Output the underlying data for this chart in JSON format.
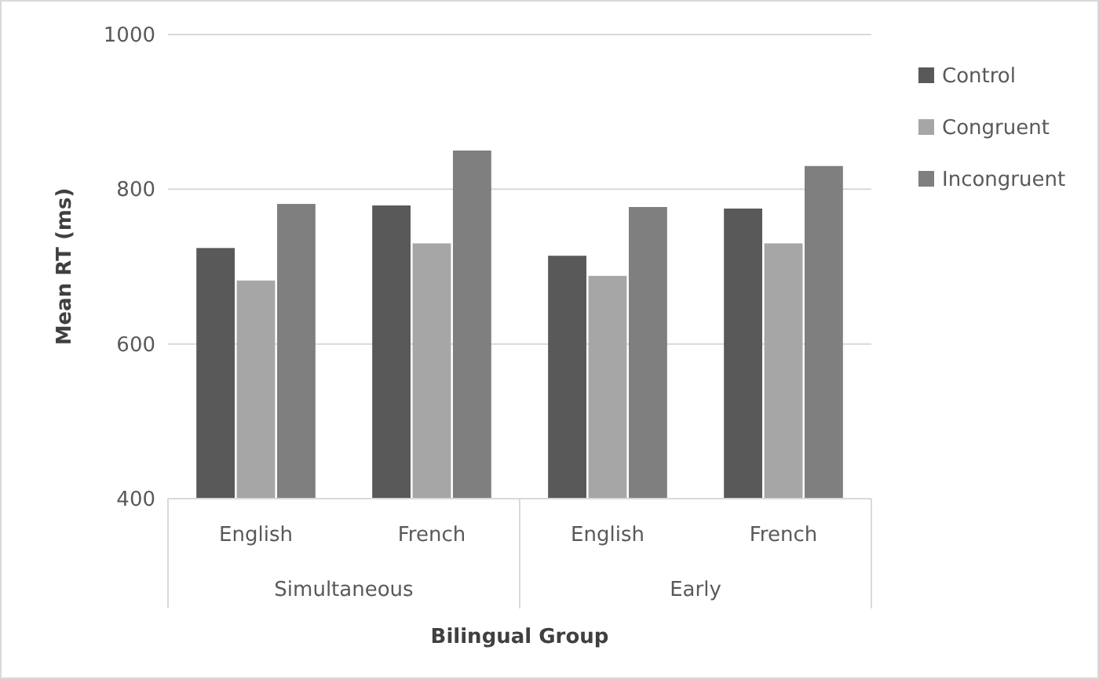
{
  "chart_data": {
    "type": "bar",
    "xlabel": "Bilingual  Group",
    "ylabel": "Mean RT (ms)",
    "categories": [
      "English",
      "French",
      "English",
      "French"
    ],
    "annotations": [
      "Simultaneous",
      "Early"
    ],
    "series": [
      {
        "name": "Control",
        "color": "#595959",
        "values": [
          724,
          779,
          714,
          775
        ]
      },
      {
        "name": "Congruent",
        "color": "#a6a6a6",
        "values": [
          682,
          730,
          688,
          730
        ]
      },
      {
        "name": "Incongruent",
        "color": "#7f7f7f",
        "values": [
          781,
          850,
          777,
          830
        ]
      }
    ],
    "ylim": [
      400,
      1000
    ],
    "yticks": [
      400,
      600,
      800,
      1000
    ],
    "grid": "y",
    "legend": "right"
  }
}
